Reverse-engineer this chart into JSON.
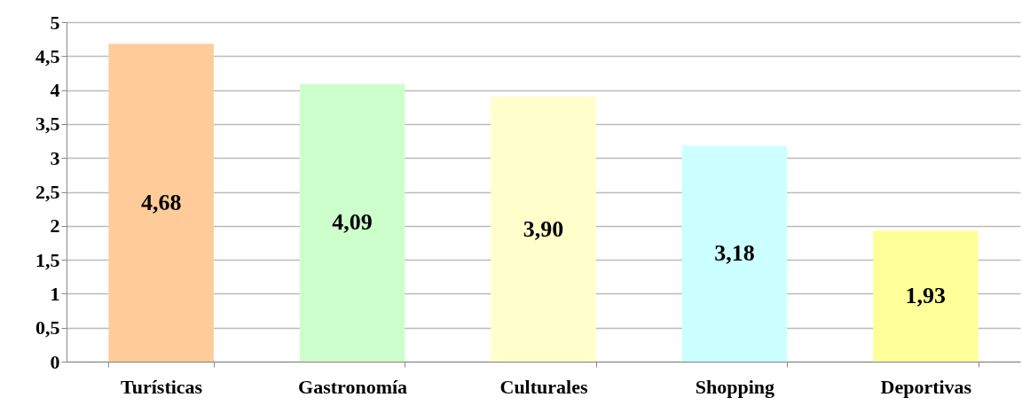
{
  "chart_data": {
    "type": "bar",
    "categories": [
      "Turísticas",
      "Gastronomía",
      "Culturales",
      "Shopping",
      "Deportivas"
    ],
    "values": [
      4.68,
      4.09,
      3.9,
      3.18,
      1.93
    ],
    "colors": [
      "#ffcc99",
      "#ccffcc",
      "#ffffcc",
      "#ccffff",
      "#ffff99"
    ],
    "value_labels": [
      "4,68",
      "4,09",
      "3,90",
      "3,18",
      "1,93"
    ],
    "ylim": [
      0,
      5
    ],
    "yticks": [
      0,
      {
        "value": 0.5,
        "label": "0,5"
      },
      1,
      {
        "value": 1.5,
        "label": "1,5"
      },
      2,
      {
        "value": 2.5,
        "label": "2,5"
      },
      3,
      {
        "value": 3.5,
        "label": "3,5"
      },
      4,
      {
        "value": 4.5,
        "label": "4,5"
      },
      5
    ],
    "grid": "y",
    "legend": false
  }
}
